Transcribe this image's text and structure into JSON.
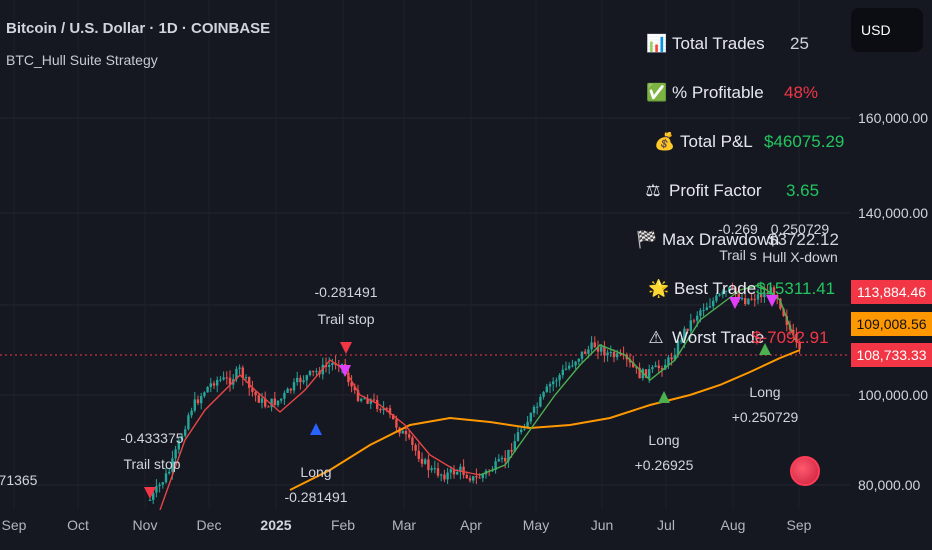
{
  "header": {
    "title": "Bitcoin / U.S. Dollar · 1D · COINBASE",
    "strategy": "BTC_Hull Suite Strategy"
  },
  "currency": "USD",
  "y_axis": {
    "ticks": [
      "160,000.00",
      "140,000.00",
      "100,000.00",
      "80,000.00"
    ]
  },
  "price_tags": [
    {
      "value": "113,884.46",
      "color": "#f23645"
    },
    {
      "value": "109,008.56",
      "color": "#ff9800"
    },
    {
      "value": "108,733.33",
      "color": "#f23645"
    }
  ],
  "x_axis": {
    "ticks": [
      "Sep",
      "Oct",
      "Nov",
      "Dec",
      "2025",
      "Feb",
      "Mar",
      "Apr",
      "May",
      "Jun",
      "Jul",
      "Aug",
      "Sep"
    ]
  },
  "stats": [
    {
      "icon": "chart-icon",
      "glyph": "📊",
      "label": "Total Trades",
      "value": "25",
      "color": "#e6e8ee"
    },
    {
      "icon": "check-icon",
      "glyph": "✅",
      "label": "% Profitable",
      "value": "48%",
      "color": "#f23645"
    },
    {
      "icon": "money-bag-icon",
      "glyph": "💰",
      "label": "Total P&L",
      "value": "$46075.29",
      "color": "#22c55e"
    },
    {
      "icon": "scale-icon",
      "glyph": "⚖",
      "label": "Profit Factor",
      "value": "3.65",
      "color": "#22c55e"
    },
    {
      "icon": "checkered-flag-icon",
      "glyph": "🏁",
      "label": "Max Drawdown",
      "value": "$3722.12",
      "color": "#e6e8ee"
    },
    {
      "icon": "star-icon",
      "glyph": "🌟",
      "label": "Best Trade",
      "value": "$15311.41",
      "color": "#22c55e"
    },
    {
      "icon": "warning-icon",
      "glyph": "⚠",
      "label": "Worst Trade",
      "value": "$-7092.91",
      "color": "#f23645"
    }
  ],
  "annotations": [
    {
      "text": "-0.281491",
      "sub": "Trail stop"
    },
    {
      "text": "-0.433375",
      "sub": "Trail stop"
    },
    {
      "text": "-0.269",
      "sub": "Trail s"
    },
    {
      "text": "0.250729",
      "sub": "Hull X-down"
    },
    {
      "text": "Long",
      "sub": "+0.26925"
    },
    {
      "text": "Long",
      "sub": "+0.250729"
    },
    {
      "text": "Long",
      "sub": "-0.281491"
    },
    {
      "text": "71365",
      "sub": ""
    }
  ],
  "colors": {
    "bull": "#26a69a",
    "bear": "#ef5350",
    "hull_up": "#4caf50",
    "hull_down": "#e84545",
    "ma": "#ff9800"
  }
}
